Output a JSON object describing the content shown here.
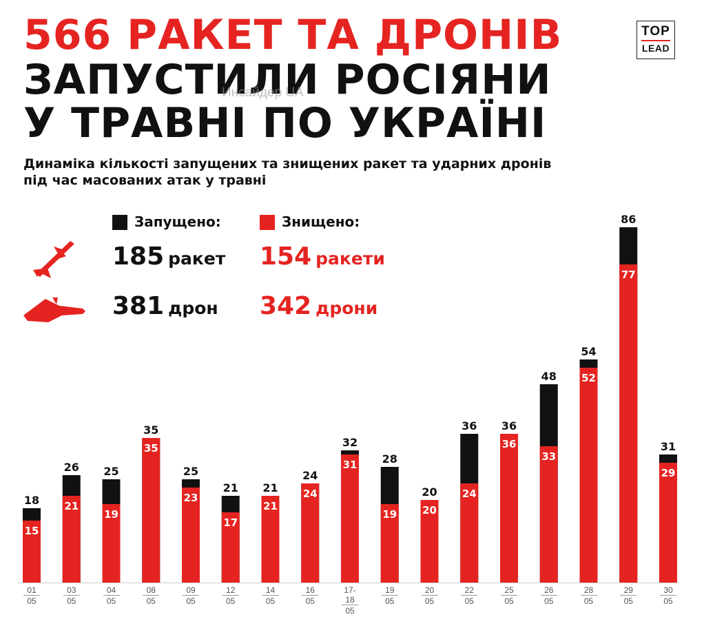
{
  "title": {
    "line1": "566 РАКЕТ ТА ДРОНІВ",
    "line2": "ЗАПУСТИЛИ РОСІЯНИ",
    "line3": "У ТРАВНІ ПО УКРАЇНІ"
  },
  "watermark": "Инсайдер UA",
  "logo": {
    "top": "TOP",
    "bottom": "LEAD"
  },
  "subtitle": {
    "line1": "Динаміка кількості запущених та знищених ракет та ударних дронів",
    "line2": "під час масованих атак у травні"
  },
  "legend": {
    "launched": {
      "label": "Запущено:",
      "color": "#111111"
    },
    "destroyed": {
      "label": "Знищено:",
      "color": "#e52421"
    }
  },
  "summary": {
    "missiles": {
      "icon": "missile-icon",
      "launched_num": "185",
      "launched_unit": "ракет",
      "destroyed_num": "154",
      "destroyed_unit": "ракети"
    },
    "drones": {
      "icon": "drone-icon",
      "launched_num": "381",
      "launched_unit": "дрон",
      "destroyed_num": "342",
      "destroyed_unit": "дрони"
    }
  },
  "colors": {
    "accent": "#e52421",
    "dark": "#111111"
  },
  "chart_data": {
    "type": "bar",
    "stacking": "overlay",
    "categories": [
      {
        "day": "01",
        "month": "05"
      },
      {
        "day": "03",
        "month": "05"
      },
      {
        "day": "04",
        "month": "05"
      },
      {
        "day": "08",
        "month": "05"
      },
      {
        "day": "09",
        "month": "05"
      },
      {
        "day": "12",
        "month": "05"
      },
      {
        "day": "14",
        "month": "05"
      },
      {
        "day": "16",
        "month": "05"
      },
      {
        "day": "17-18",
        "month": "05"
      },
      {
        "day": "19",
        "month": "05"
      },
      {
        "day": "20",
        "month": "05"
      },
      {
        "day": "22",
        "month": "05"
      },
      {
        "day": "25",
        "month": "05"
      },
      {
        "day": "26",
        "month": "05"
      },
      {
        "day": "28",
        "month": "05"
      },
      {
        "day": "29",
        "month": "05"
      },
      {
        "day": "30",
        "month": "05"
      }
    ],
    "series": [
      {
        "name": "Запущено",
        "color": "#111111",
        "values": [
          18,
          26,
          25,
          35,
          25,
          21,
          21,
          24,
          32,
          28,
          20,
          36,
          36,
          48,
          54,
          86,
          31
        ]
      },
      {
        "name": "Знищено",
        "color": "#e52421",
        "values": [
          15,
          21,
          19,
          35,
          23,
          17,
          21,
          24,
          31,
          19,
          20,
          24,
          36,
          33,
          52,
          77,
          29
        ]
      }
    ],
    "ylim": [
      0,
      86
    ],
    "title": "Динаміка кількості запущених та знищених ракет та ударних дронів під час масованих атак у травні",
    "xlabel": "",
    "ylabel": ""
  }
}
